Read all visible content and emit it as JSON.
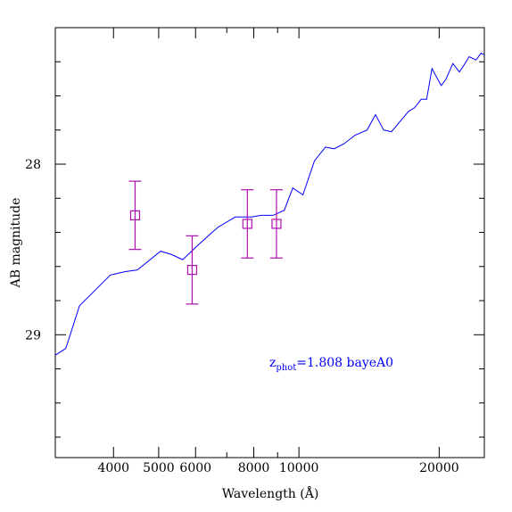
{
  "chart_data": {
    "type": "scatter",
    "title": "",
    "xlabel": "Wavelength (Å)",
    "ylabel": "AB magnitude",
    "x_scale": "log",
    "xlim": [
      3000,
      25000
    ],
    "ylim": [
      29.72,
      27.2
    ],
    "x_ticks": [
      {
        "value": 4000,
        "label": "4000"
      },
      {
        "value": 5000,
        "label": "5000"
      },
      {
        "value": 6000,
        "label": "6000"
      },
      {
        "value": 8000,
        "label": "8000"
      },
      {
        "value": 10000,
        "label": "10000"
      },
      {
        "value": 20000,
        "label": "20000"
      }
    ],
    "y_ticks": [
      {
        "value": 28,
        "label": "28"
      },
      {
        "value": 29,
        "label": "29"
      }
    ],
    "annotation": {
      "text_main": "z",
      "text_sub": "phot",
      "text_rest": "=1.808 bayeA0",
      "color": "#0000ff"
    },
    "series": [
      {
        "kind": "line",
        "color": "#0000ff",
        "x": [
          3000,
          3160,
          3380,
          3940,
          4240,
          4500,
          5050,
          5330,
          5630,
          6100,
          6700,
          7300,
          7900,
          8300,
          8800,
          9300,
          9700,
          10200,
          10800,
          11400,
          11900,
          12500,
          13200,
          14000,
          14600,
          15200,
          15800,
          16600,
          17200,
          17700,
          18300,
          18800,
          19300,
          20200,
          20700,
          21400,
          22100,
          22600,
          23200,
          24000,
          24600,
          25000
        ],
        "y": [
          29.12,
          29.08,
          28.83,
          28.65,
          28.63,
          28.62,
          28.51,
          28.53,
          28.56,
          28.47,
          28.37,
          28.31,
          28.31,
          28.3,
          28.3,
          28.27,
          28.14,
          28.18,
          27.98,
          27.9,
          27.91,
          27.88,
          27.83,
          27.8,
          27.71,
          27.8,
          27.81,
          27.74,
          27.69,
          27.67,
          27.62,
          27.62,
          27.44,
          27.54,
          27.5,
          27.41,
          27.46,
          27.42,
          27.37,
          27.39,
          27.35,
          27.36
        ]
      },
      {
        "kind": "errorbar",
        "color": "#b010b0",
        "x": [
          4450,
          5900,
          7750,
          8950
        ],
        "y": [
          28.3,
          28.62,
          28.35,
          28.35
        ],
        "yerr": [
          0.2,
          0.2,
          0.2,
          0.2
        ]
      }
    ]
  }
}
